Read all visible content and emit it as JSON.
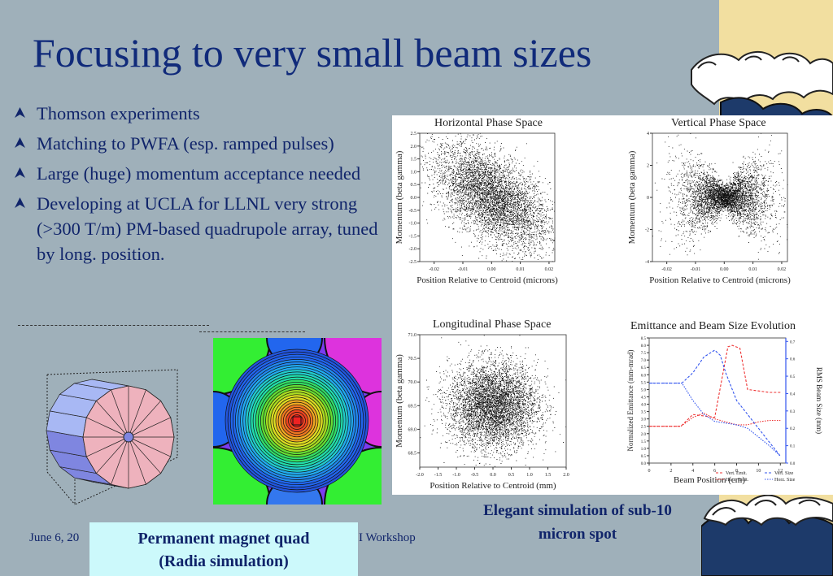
{
  "slide": {
    "title": "Focusing to very small beam sizes",
    "bullets": [
      "Thomson experiments",
      "Matching to PWFA (esp. ramped pulses)",
      "Large (huge) momentum acceptance needed",
      "Developing at UCLA for LLNL very strong (>300 T/m) PM-based quadrupole array, tuned by long. position."
    ],
    "footer_left": "June 6, 20",
    "footer_right": "I Workshop",
    "quad_caption_line1": "Permanent magnet quad",
    "quad_caption_line2": "(Radia simulation)",
    "sim_caption_line1": "Elegant simulation of sub-10",
    "sim_caption_line2": "micron spot"
  },
  "colors": {
    "title": "#102a7a",
    "text": "#10246a",
    "background": "#9fb0ba",
    "accent_strip": "#f2dfa0",
    "caption_box": "#ccf9fb"
  },
  "chart_data": [
    {
      "type": "scatter",
      "title": "Horizontal Phase Space",
      "xlabel": "Position Relative to Centroid (microns)",
      "ylabel": "Momentum (beta gamma)",
      "xticks": [
        "-0.02",
        "-0.01",
        "0.00",
        "0.01",
        "0.02"
      ],
      "yticks": [
        "2.5",
        "2.0",
        "1.5",
        "1.0",
        "0.5",
        "0.0",
        "-0.5",
        "-1.0",
        "-1.5",
        "-2.0",
        "-2.5"
      ],
      "xlim": [
        -0.025,
        0.022
      ],
      "ylim": [
        -2.5,
        2.5
      ],
      "distribution": {
        "x_center": 0.0,
        "y_center": 0.0,
        "x_sigma": 0.01,
        "y_sigma": 1.0,
        "correlation": -0.55
      }
    },
    {
      "type": "scatter",
      "title": "Vertical Phase Space",
      "xlabel": "Position Relative to Centroid (microns)",
      "ylabel": "Momentum (beta gamma)",
      "xticks": [
        "-0.02",
        "-0.01",
        "0.00",
        "0.01",
        "0.02"
      ],
      "yticks": [
        "4",
        "2",
        "0",
        "-2",
        "-4"
      ],
      "xlim": [
        -0.025,
        0.022
      ],
      "ylim": [
        -4,
        4
      ],
      "distribution": {
        "shape": "bowtie",
        "x_center": 0.0,
        "y_center": 0.0
      }
    },
    {
      "type": "scatter",
      "title": "Longitudinal Phase Space",
      "xlabel": "Position Relative to Centroid (mm)",
      "ylabel": "Momentum (beta gamma)",
      "xticks": [
        "-2.0",
        "-1.5",
        "-1.0",
        "-0.5",
        "0.0",
        "0.5",
        "1.0",
        "1.5",
        "2.0"
      ],
      "yticks": [
        "71.0",
        "70.5",
        "70.0",
        "69.5",
        "69.0",
        "68.5"
      ],
      "xlim": [
        -2.0,
        2.0
      ],
      "ylim": [
        68.2,
        71.0
      ],
      "distribution": {
        "x_center": 0.0,
        "y_center": 69.5,
        "x_sigma": 0.6,
        "y_sigma": 0.45,
        "correlation": 0.0
      }
    },
    {
      "type": "line",
      "title": "Emittance and Beam Size Evolution",
      "xlabel": "Beam Position (cm)",
      "ylabel": "Normalized Emittance (mm-mrad)",
      "y2label": "RMS Beam Size (mm)",
      "xticks": [
        "0",
        "2",
        "4",
        "6",
        "8",
        "10",
        "12"
      ],
      "yticks": [
        "0.0",
        "0.5",
        "1.0",
        "1.5",
        "2.0",
        "2.5",
        "3.0",
        "3.5",
        "4.0",
        "4.5",
        "5.0",
        "5.5",
        "6.0",
        "6.5",
        "7.0",
        "7.5",
        "8.0",
        "8.5"
      ],
      "y2ticks": [
        "0.0",
        "0.1",
        "0.2",
        "0.3",
        "0.4",
        "0.5",
        "0.6",
        "0.7"
      ],
      "xlim": [
        0,
        12.5
      ],
      "ylim": [
        0,
        8.5
      ],
      "y2lim": [
        0,
        0.72
      ],
      "legend_position": "bottom-right",
      "series": [
        {
          "name": "Vert. Emit.",
          "axis": "left",
          "color": "#ee3333",
          "dash": "dashed",
          "x": [
            0,
            2.9,
            4,
            5,
            6,
            6.6,
            7.2,
            7.6,
            8.3,
            9,
            10,
            11,
            12
          ],
          "y": [
            2.5,
            2.5,
            3.3,
            3.2,
            3.1,
            5.5,
            7.9,
            8.0,
            7.8,
            5.0,
            4.9,
            4.8,
            4.8
          ]
        },
        {
          "name": "Horz. Emit.",
          "axis": "left",
          "color": "#ee3333",
          "dash": "dotted",
          "x": [
            0,
            2.9,
            4,
            5,
            6,
            7,
            8,
            9,
            10,
            11,
            12
          ],
          "y": [
            2.5,
            2.5,
            3.1,
            3.4,
            3.0,
            2.8,
            2.6,
            2.6,
            2.8,
            2.9,
            2.9
          ]
        },
        {
          "name": "Vert. Size",
          "axis": "right",
          "color": "#3355ee",
          "dash": "dashed",
          "x": [
            0,
            2,
            3,
            4,
            5,
            6,
            6.5,
            7,
            8,
            9,
            10,
            11,
            12
          ],
          "y": [
            0.46,
            0.46,
            0.46,
            0.52,
            0.61,
            0.65,
            0.62,
            0.52,
            0.36,
            0.28,
            0.2,
            0.12,
            0.04
          ]
        },
        {
          "name": "Horz. Size",
          "axis": "right",
          "color": "#3355ee",
          "dash": "dotted",
          "x": [
            0,
            2,
            3,
            4,
            5,
            6,
            7,
            8,
            9,
            10,
            11,
            12
          ],
          "y": [
            0.46,
            0.46,
            0.46,
            0.36,
            0.28,
            0.24,
            0.23,
            0.22,
            0.2,
            0.15,
            0.1,
            0.04
          ]
        }
      ]
    }
  ]
}
